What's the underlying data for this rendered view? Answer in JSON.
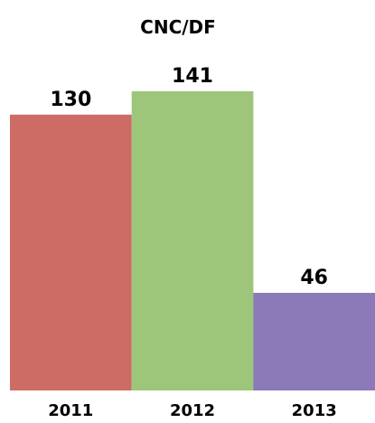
{
  "chart_data": {
    "type": "bar",
    "title": "CNC/DF",
    "categories": [
      "2011",
      "2012",
      "2013"
    ],
    "values": [
      130,
      141,
      46
    ],
    "colors": [
      "#cd6b65",
      "#9dc67a",
      "#8c7ab8"
    ],
    "data_labels": [
      "130",
      "141",
      "46"
    ],
    "xlabel": "",
    "ylabel": "",
    "ylim": [
      0,
      141
    ],
    "grid": false,
    "legend": "none"
  }
}
